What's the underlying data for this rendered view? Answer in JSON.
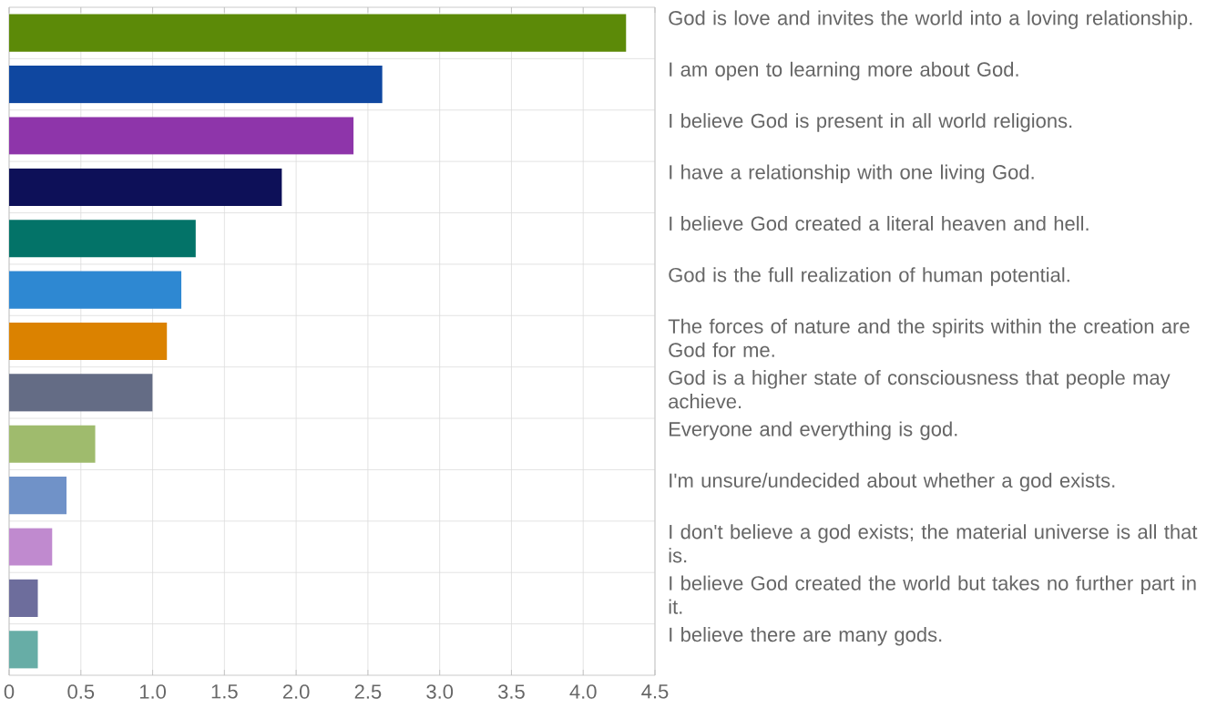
{
  "chart_data": {
    "type": "bar",
    "orientation": "horizontal",
    "categories": [
      "God is love and invites the world into a loving relationship.",
      "I am open to learning more about God.",
      "I believe God is present in all world religions.",
      "I have a relationship with one living God.",
      "I believe God created a literal heaven and hell.",
      "God is the full realization of human potential.",
      "The forces of nature and the spirits within the creation are God for me.",
      "God is a higher state of consciousness that people may achieve.",
      "Everyone and everything is god.",
      "I'm unsure/undecided about whether a god exists.",
      "I don't believe a god exists; the material universe is all that is.",
      "I believe God created the world but takes no further part in it.",
      "I believe there are many gods."
    ],
    "values": [
      4.3,
      2.6,
      2.4,
      1.9,
      1.3,
      1.2,
      1.1,
      1.0,
      0.6,
      0.4,
      0.3,
      0.2,
      0.2
    ],
    "colors": [
      "#5c8a08",
      "#0f47a0",
      "#8e35aa",
      "#0d1058",
      "#037368",
      "#2e88d2",
      "#db8200",
      "#646c85",
      "#9fbb6d",
      "#7092c8",
      "#c08acf",
      "#6d6d9c",
      "#67ada6"
    ],
    "xlim": [
      0,
      4.5
    ],
    "xticks": [
      0,
      0.5,
      {
        "value": 1,
        "label": "1.0"
      },
      1.5,
      {
        "value": 2,
        "label": "2.0"
      },
      2.5,
      {
        "value": 3,
        "label": "3.0"
      },
      3.5,
      {
        "value": 4,
        "label": "4.0"
      },
      4.5
    ],
    "grid": true
  }
}
